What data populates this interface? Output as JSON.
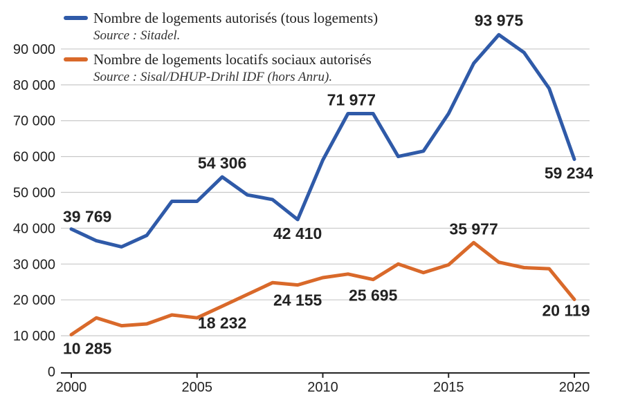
{
  "chart_data": {
    "type": "line",
    "x": [
      2000,
      2001,
      2002,
      2003,
      2004,
      2005,
      2006,
      2007,
      2008,
      2009,
      2010,
      2011,
      2012,
      2013,
      2014,
      2015,
      2016,
      2017,
      2018,
      2019,
      2020
    ],
    "xticks": [
      2000,
      2005,
      2010,
      2015,
      2020
    ],
    "xtick_labels": [
      "2000",
      "2005",
      "2010",
      "2015",
      "2020"
    ],
    "ylim": [
      0,
      95000
    ],
    "yticks": [
      0,
      10000,
      20000,
      30000,
      40000,
      50000,
      60000,
      70000,
      80000,
      90000
    ],
    "ytick_labels": [
      "0",
      "10 000",
      "20 000",
      "30 000",
      "40 000",
      "50 000",
      "60 000",
      "70 000",
      "80 000",
      "90 000"
    ],
    "grid": true,
    "legend_position": "top-left",
    "series": [
      {
        "name": "Nombre de logements autorisés (tous logements)",
        "source": "Source : Sitadel.",
        "color": "#2f5aa8",
        "values": [
          39769,
          36500,
          34800,
          38000,
          47500,
          47500,
          54306,
          49300,
          48000,
          42410,
          59000,
          71977,
          71977,
          60000,
          61500,
          72000,
          86000,
          93975,
          89000,
          79000,
          59234
        ],
        "labels": [
          {
            "year": 2000,
            "text": "39 769",
            "value": 39769
          },
          {
            "year": 2006,
            "text": "54 306",
            "value": 54306
          },
          {
            "year": 2009,
            "text": "42 410",
            "value": 42410
          },
          {
            "year": 2011,
            "text": "71 977",
            "value": 71977
          },
          {
            "year": 2017,
            "text": "93 975",
            "value": 93975
          },
          {
            "year": 2020,
            "text": "59 234",
            "value": 59234
          }
        ]
      },
      {
        "name": "Nombre de logements locatifs sociaux autorisés",
        "source": "Source : Sisal/DHUP-Drihl IDF (hors Anru).",
        "color": "#d9692a",
        "values": [
          10285,
          15000,
          12800,
          13300,
          15800,
          15000,
          18232,
          21500,
          24800,
          24155,
          26200,
          27200,
          25695,
          30000,
          27600,
          29800,
          35977,
          30500,
          29000,
          28700,
          20119
        ],
        "labels": [
          {
            "year": 2000,
            "text": "10 285",
            "value": 10285
          },
          {
            "year": 2006,
            "text": "18 232",
            "value": 18232
          },
          {
            "year": 2009,
            "text": "24 155",
            "value": 24155
          },
          {
            "year": 2012,
            "text": "25 695",
            "value": 25695
          },
          {
            "year": 2016,
            "text": "35 977",
            "value": 35977
          },
          {
            "year": 2020,
            "text": "20 119",
            "value": 20119
          }
        ]
      }
    ]
  }
}
